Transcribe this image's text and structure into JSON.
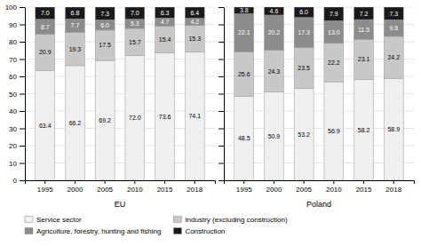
{
  "chart_data": [
    {
      "type": "bar",
      "stacked": true,
      "data_labels": true,
      "grid": true,
      "xlabel": "EU",
      "categories": [
        "1995",
        "2000",
        "2005",
        "2010",
        "2015",
        "2018"
      ],
      "series": [
        {
          "name": "Service sector",
          "color": "#efefef",
          "values": [
            63.4,
            66.2,
            69.2,
            72.0,
            73.6,
            74.1
          ],
          "value_labels": [
            "63.4",
            "66.2",
            "69.2",
            "72.0",
            "73.6",
            "74.1"
          ]
        },
        {
          "name": "Industry (excluding construction)",
          "color": "#c8c8c8",
          "values": [
            20.9,
            19.3,
            17.5,
            15.7,
            15.4,
            15.3
          ],
          "value_labels": [
            "20.9",
            "19.3",
            "17.5",
            "15.7",
            "15.4",
            "15.3"
          ]
        },
        {
          "name": "Agriculture, forestry, hunting and fishing",
          "color": "#8c8c8c",
          "values": [
            8.7,
            7.7,
            6.0,
            5.3,
            4.7,
            4.2
          ],
          "value_labels": [
            "8.7",
            "7.7",
            "6.0",
            "5.3",
            "4.7",
            "4.2"
          ]
        },
        {
          "name": "Construction",
          "color": "#1a1a1a",
          "values": [
            7.0,
            6.8,
            7.3,
            7.0,
            6.3,
            6.4
          ],
          "value_labels": [
            "7.0",
            "6.8",
            "7.3",
            "7.0",
            "6.3",
            "6.4"
          ]
        }
      ],
      "ylim": [
        0,
        100
      ],
      "yticks": [
        0,
        10,
        20,
        30,
        40,
        50,
        60,
        70,
        80,
        90,
        100
      ]
    },
    {
      "type": "bar",
      "stacked": true,
      "data_labels": true,
      "grid": true,
      "tick_labels": "x",
      "xlabel": "Poland",
      "categories": [
        "1995",
        "2000",
        "2005",
        "2010",
        "2015",
        "2018"
      ],
      "series": [
        {
          "color": "#efefef",
          "values": [
            48.5,
            50.9,
            53.2,
            56.9,
            58.2,
            58.9
          ],
          "value_labels": [
            "48.5",
            "50.9",
            "53.2",
            "56.9",
            "58.2",
            "58.9"
          ]
        },
        {
          "color": "#c8c8c8",
          "values": [
            25.6,
            24.3,
            23.5,
            22.2,
            23.1,
            24.2
          ],
          "value_labels": [
            "25.6",
            "24.3",
            "23.5",
            "22.2",
            "23.1",
            "24.2"
          ]
        },
        {
          "color": "#8c8c8c",
          "values": [
            22.1,
            20.2,
            17.3,
            13.0,
            11.5,
            9.6
          ],
          "value_labels": [
            "22.1",
            "20.2",
            "17.3",
            "13.0",
            "11.5",
            "9.6"
          ]
        },
        {
          "color": "#1a1a1a",
          "values": [
            3.8,
            4.6,
            6.0,
            7.9,
            7.2,
            7.3
          ],
          "value_labels": [
            "3.8",
            "4.6",
            "6.0",
            "7.9",
            "7.2",
            "7.3"
          ]
        }
      ],
      "ylim": [
        0,
        100
      ],
      "yticks": [
        0,
        10,
        20,
        30,
        40,
        50,
        60,
        70,
        80,
        90,
        100
      ]
    }
  ]
}
